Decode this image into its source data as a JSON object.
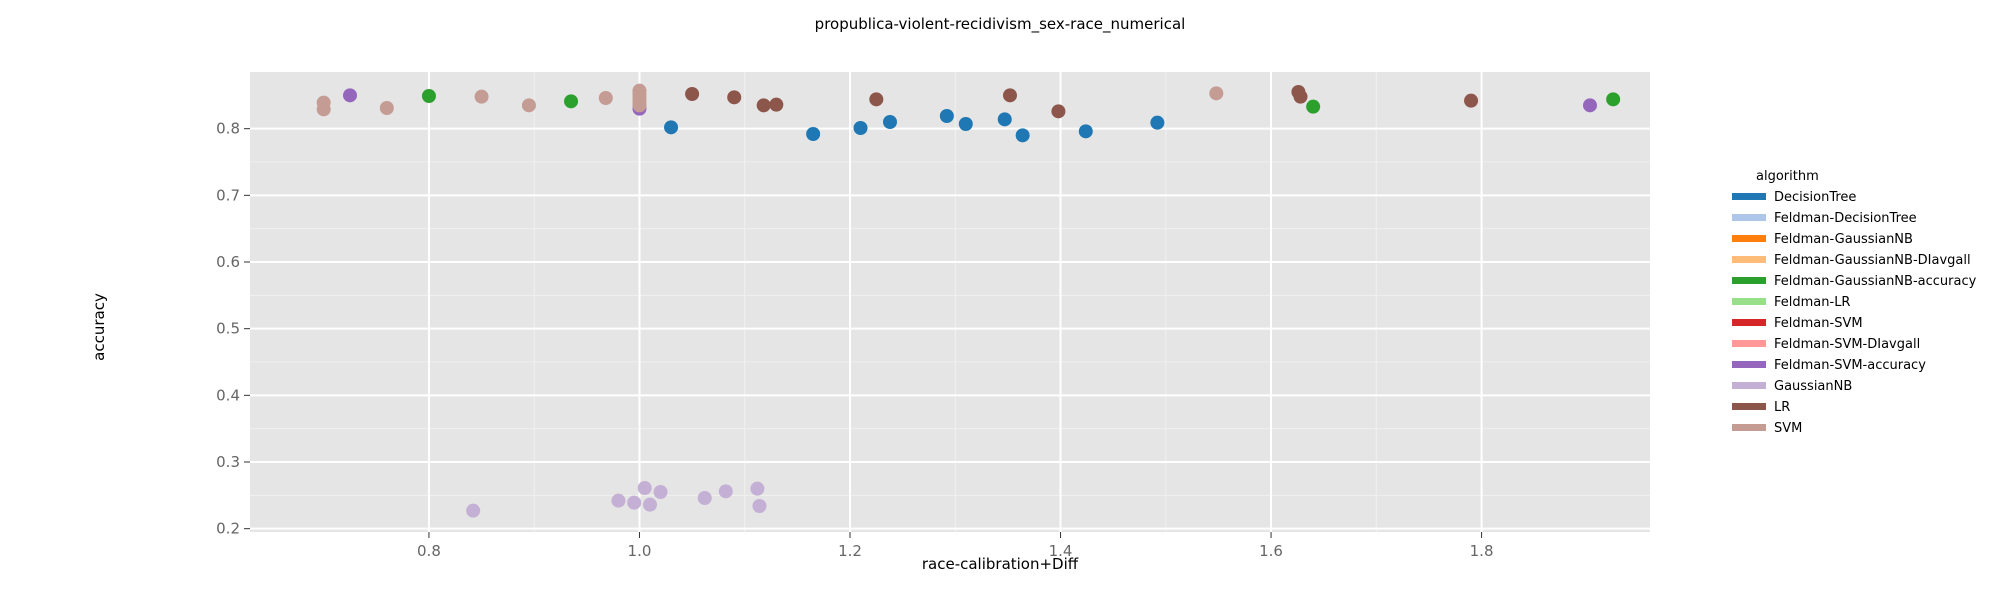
{
  "chart_data": {
    "type": "scatter",
    "title": "propublica-violent-recidivism_sex-race_numerical",
    "xlabel": "race-calibration+Diff",
    "ylabel": "accuracy",
    "xlim": [
      0.63,
      1.96
    ],
    "ylim": [
      0.195,
      0.885
    ],
    "xticks": [
      0.8,
      1.0,
      1.2,
      1.4,
      1.6,
      1.8
    ],
    "yticks": [
      0.2,
      0.3,
      0.4,
      0.5,
      0.6,
      0.7,
      0.8
    ],
    "grid": true,
    "legend": {
      "title": "algorithm",
      "position": "right"
    },
    "series": [
      {
        "name": "DecisionTree",
        "color": "#1f77b4",
        "points": [
          [
            1.03,
            0.802
          ],
          [
            1.165,
            0.792
          ],
          [
            1.21,
            0.801
          ],
          [
            1.238,
            0.81
          ],
          [
            1.292,
            0.819
          ],
          [
            1.31,
            0.807
          ],
          [
            1.347,
            0.814
          ],
          [
            1.364,
            0.79
          ],
          [
            1.424,
            0.796
          ],
          [
            1.492,
            0.809
          ]
        ]
      },
      {
        "name": "Feldman-DecisionTree",
        "color": "#aec7e8",
        "points": []
      },
      {
        "name": "Feldman-GaussianNB",
        "color": "#ff7f0e",
        "points": []
      },
      {
        "name": "Feldman-GaussianNB-DIavgall",
        "color": "#ffbb78",
        "points": []
      },
      {
        "name": "Feldman-GaussianNB-accuracy",
        "color": "#2ca02c",
        "points": [
          [
            0.8,
            0.849
          ],
          [
            0.935,
            0.841
          ],
          [
            1.64,
            0.833
          ],
          [
            1.925,
            0.844
          ]
        ]
      },
      {
        "name": "Feldman-LR",
        "color": "#98df8a",
        "points": []
      },
      {
        "name": "Feldman-SVM",
        "color": "#d62728",
        "points": []
      },
      {
        "name": "Feldman-SVM-DIavgall",
        "color": "#ff9896",
        "points": []
      },
      {
        "name": "Feldman-SVM-accuracy",
        "color": "#9467bd",
        "points": [
          [
            0.725,
            0.85
          ],
          [
            1.0,
            0.83
          ],
          [
            1.903,
            0.835
          ]
        ]
      },
      {
        "name": "GaussianNB",
        "color": "#c5b0d5",
        "points": [
          [
            0.842,
            0.227
          ],
          [
            0.98,
            0.242
          ],
          [
            0.995,
            0.239
          ],
          [
            1.005,
            0.261
          ],
          [
            1.01,
            0.236
          ],
          [
            1.02,
            0.255
          ],
          [
            1.062,
            0.246
          ],
          [
            1.082,
            0.256
          ],
          [
            1.112,
            0.26
          ],
          [
            1.114,
            0.234
          ]
        ]
      },
      {
        "name": "LR",
        "color": "#8c564b",
        "points": [
          [
            1.05,
            0.852
          ],
          [
            1.09,
            0.847
          ],
          [
            1.118,
            0.835
          ],
          [
            1.13,
            0.836
          ],
          [
            1.225,
            0.844
          ],
          [
            1.352,
            0.85
          ],
          [
            1.398,
            0.826
          ],
          [
            1.626,
            0.855
          ],
          [
            1.628,
            0.848
          ],
          [
            1.79,
            0.842
          ]
        ]
      },
      {
        "name": "SVM",
        "color": "#c49c94",
        "points": [
          [
            0.7,
            0.839
          ],
          [
            0.7,
            0.829
          ],
          [
            0.76,
            0.831
          ],
          [
            0.85,
            0.848
          ],
          [
            0.895,
            0.835
          ],
          [
            0.968,
            0.846
          ],
          [
            1.0,
            0.857
          ],
          [
            1.0,
            0.852
          ],
          [
            1.0,
            0.846
          ],
          [
            1.0,
            0.84
          ],
          [
            1.0,
            0.835
          ],
          [
            1.548,
            0.853
          ]
        ]
      }
    ]
  }
}
